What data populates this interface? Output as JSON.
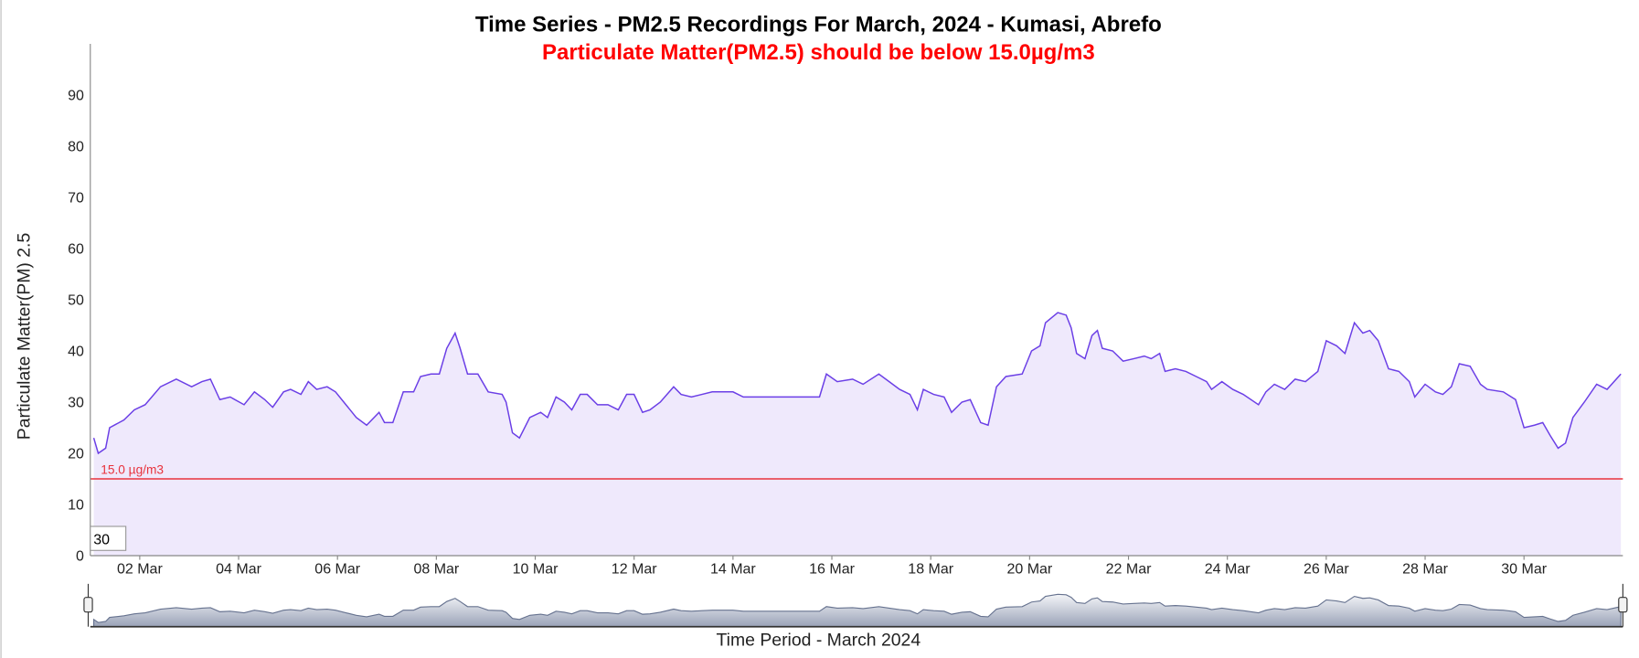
{
  "chart_data": {
    "type": "line",
    "title": "Time Series - PM2.5 Recordings For March, 2024 - Kumasi, Abrefo",
    "subtitle": "Particulate Matter(PM2.5) should be below 15.0µg/m3",
    "y_label": "Particulate Matter(PM) 2.5",
    "x_label": "Time Period - March 2024",
    "color": "#6b3fe6",
    "fill": "#efe9fc",
    "x": [
      1.07,
      1.16,
      1.31,
      1.39,
      1.68,
      1.89,
      2.11,
      2.42,
      2.74,
      3.05,
      3.26,
      3.43,
      3.62,
      3.83,
      4.11,
      4.32,
      4.53,
      4.69,
      4.91,
      5.05,
      5.26,
      5.41,
      5.58,
      5.79,
      5.96,
      6.17,
      6.38,
      6.59,
      6.84,
      6.95,
      7.12,
      7.33,
      7.54,
      7.68,
      7.89,
      8.06,
      8.21,
      8.38,
      8.48,
      8.63,
      8.84,
      9.05,
      9.33,
      9.41,
      9.54,
      9.68,
      9.89,
      10.11,
      10.25,
      10.42,
      10.59,
      10.74,
      10.91,
      11.05,
      11.26,
      11.47,
      11.68,
      11.85,
      12.0,
      12.17,
      12.32,
      12.53,
      12.8,
      12.95,
      13.16,
      13.37,
      13.58,
      13.79,
      14.0,
      14.21,
      15.75,
      15.89,
      16.11,
      16.42,
      16.63,
      16.95,
      17.16,
      17.37,
      17.58,
      17.73,
      17.85,
      18.06,
      18.27,
      18.42,
      18.63,
      18.8,
      19.01,
      19.16,
      19.33,
      19.52,
      19.85,
      20.04,
      20.21,
      20.32,
      20.57,
      20.74,
      20.84,
      20.95,
      21.12,
      21.26,
      21.37,
      21.47,
      21.68,
      21.89,
      22.11,
      22.32,
      22.46,
      22.63,
      22.74,
      22.95,
      23.16,
      23.37,
      23.58,
      23.68,
      23.89,
      24.11,
      24.32,
      24.63,
      24.78,
      24.95,
      25.16,
      25.37,
      25.58,
      25.83,
      26.0,
      26.21,
      26.38,
      26.57,
      26.74,
      26.88,
      27.05,
      27.26,
      27.47,
      27.68,
      27.79,
      28.0,
      28.21,
      28.36,
      28.53,
      28.69,
      28.91,
      29.12,
      29.26,
      29.58,
      29.83,
      30.0,
      30.21,
      30.38,
      30.53,
      30.69,
      30.84,
      30.99,
      31.22,
      31.47,
      31.68,
      31.96
    ],
    "values": [
      23,
      20,
      21,
      25,
      26.5,
      28.5,
      29.5,
      33,
      34.5,
      33,
      34,
      34.5,
      30.5,
      31,
      29.5,
      32,
      30.5,
      29,
      32,
      32.5,
      31.5,
      34,
      32.5,
      33,
      32,
      29.5,
      27,
      25.5,
      28,
      26,
      26,
      32,
      32,
      35,
      35.5,
      35.5,
      40.5,
      43.5,
      40.5,
      35.5,
      35.5,
      32,
      31.5,
      30,
      24,
      23,
      27,
      28,
      27,
      31,
      30,
      28.5,
      31.5,
      31.5,
      29.5,
      29.5,
      28.5,
      31.5,
      31.5,
      28,
      28.5,
      30,
      33,
      31.5,
      31,
      31.5,
      32,
      32,
      32,
      31,
      31,
      35.5,
      34,
      34.5,
      33.5,
      35.5,
      34,
      32.5,
      31.5,
      28.5,
      32.5,
      31.5,
      31,
      28,
      30,
      30.5,
      26,
      25.5,
      33,
      35,
      35.5,
      40,
      41,
      45.5,
      47.5,
      47,
      44.5,
      39.5,
      38.5,
      43,
      44,
      40.5,
      40,
      38,
      38.5,
      39,
      38.5,
      39.5,
      36,
      36.5,
      36,
      35,
      34,
      32.5,
      34,
      32.5,
      31.5,
      29.5,
      32,
      33.5,
      32.5,
      34.5,
      34,
      36,
      42,
      41,
      39.5,
      45.5,
      43.5,
      44,
      42,
      36.5,
      36,
      34,
      31,
      33.5,
      32,
      31.5,
      33,
      37.5,
      37,
      33.5,
      32.5,
      32,
      30.5,
      25,
      25.5,
      26,
      23.5,
      21,
      22,
      27,
      30,
      33.5,
      32.5,
      35.5
    ],
    "xlim": [
      1,
      32
    ],
    "xticks": [
      {
        "value": 2,
        "label": "02 Mar"
      },
      {
        "value": 4,
        "label": "04 Mar"
      },
      {
        "value": 6,
        "label": "06 Mar"
      },
      {
        "value": 8,
        "label": "08 Mar"
      },
      {
        "value": 10,
        "label": "10 Mar"
      },
      {
        "value": 12,
        "label": "12 Mar"
      },
      {
        "value": 14,
        "label": "14 Mar"
      },
      {
        "value": 16,
        "label": "16 Mar"
      },
      {
        "value": 18,
        "label": "18 Mar"
      },
      {
        "value": 20,
        "label": "20 Mar"
      },
      {
        "value": 22,
        "label": "22 Mar"
      },
      {
        "value": 24,
        "label": "24 Mar"
      },
      {
        "value": 26,
        "label": "26 Mar"
      },
      {
        "value": 28,
        "label": "28 Mar"
      },
      {
        "value": 30,
        "label": "30 Mar"
      }
    ],
    "ylim": [
      0,
      100
    ],
    "yticks": [
      0,
      10,
      20,
      30,
      40,
      50,
      60,
      70,
      80,
      90
    ],
    "grid": false,
    "threshold": {
      "value": 15,
      "label": "15.0 µg/m3",
      "color": "#e8323c"
    }
  },
  "controls": {
    "zoom_input": "30"
  }
}
